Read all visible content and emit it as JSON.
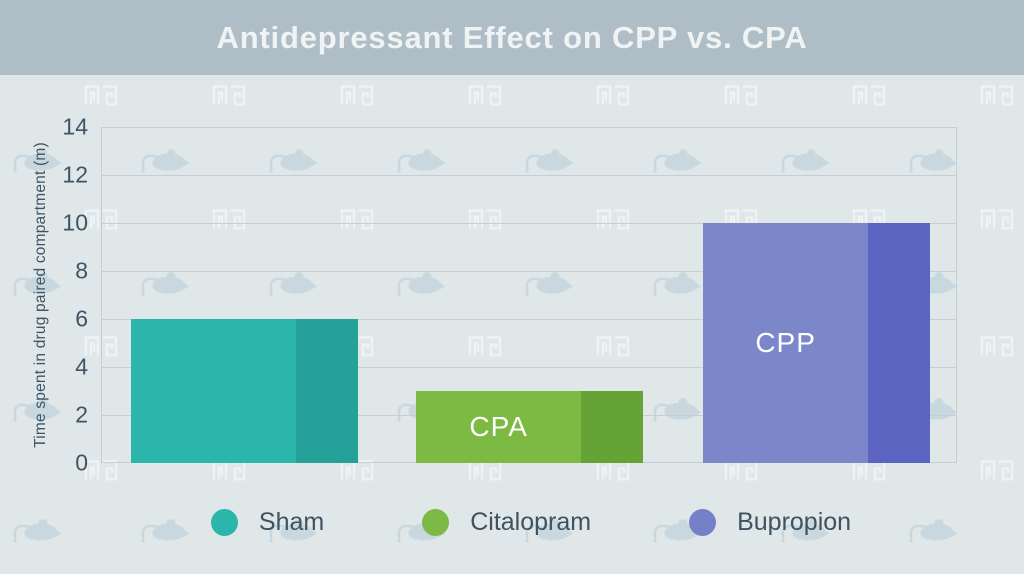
{
  "header": {
    "title": "Antidepressant Effect on CPP vs. CPA"
  },
  "chart_data": {
    "type": "bar",
    "title": "Antidepressant Effect on CPP vs. CPA",
    "categories": [
      "Sham",
      "Citalopram",
      "Bupropion"
    ],
    "values": [
      6,
      3,
      10
    ],
    "bar_annotations": [
      "",
      "CPA",
      "CPP"
    ],
    "xlabel": "",
    "ylabel": "Time spent in drug paired compartment (m)",
    "ylim": [
      0,
      14
    ],
    "yticks": [
      0,
      2,
      4,
      6,
      8,
      10,
      12,
      14
    ],
    "grid": true,
    "legend_position": "bottom",
    "series_styles": [
      {
        "name": "Sham",
        "color": "#2cb5aa",
        "shade": "#26a199"
      },
      {
        "name": "Citalopram",
        "color": "#7cba43",
        "shade": "#66a336"
      },
      {
        "name": "Bupropion",
        "color": "#7b87c8",
        "shade": "#5c64c1"
      }
    ]
  },
  "legend": {
    "items": [
      {
        "label": "Sham",
        "color": "#2cb5aa"
      },
      {
        "label": "Citalopram",
        "color": "#7cba45"
      },
      {
        "label": "Bupropion",
        "color": "#7480c7"
      }
    ]
  },
  "watermark": {
    "icons": [
      "mouse-icon",
      "maze-icon"
    ]
  },
  "colors": {
    "background": "#dfe7e8",
    "header_bar": "#afbec6",
    "title_text": "#f0f3f4",
    "grid": "#c5ced5",
    "axis_text": "#3e5565",
    "legend_text": "#3e5260",
    "bar_label_text": "#ffffff",
    "watermark_mouse": "#c9d8de",
    "watermark_maze": "#eef3f4"
  }
}
